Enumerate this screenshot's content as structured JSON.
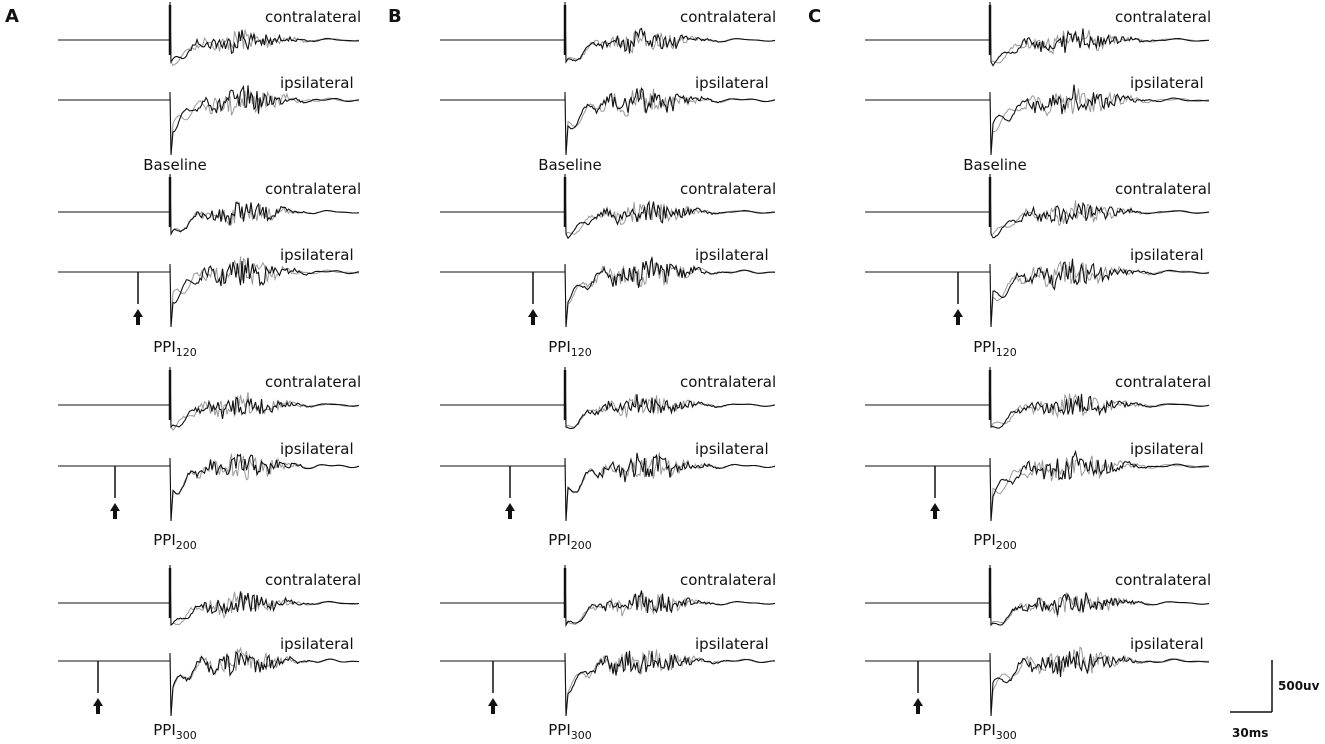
{
  "panels": [
    {
      "label": "A",
      "groups": [
        {
          "condition": {
            "base": "Baseline"
          },
          "traces": [
            "contralateral",
            "ipsilateral"
          ]
        },
        {
          "condition": {
            "base": "PPI",
            "sub": "120"
          },
          "traces": [
            "contralateral",
            "ipsilateral"
          ]
        },
        {
          "condition": {
            "base": "PPI",
            "sub": "200"
          },
          "traces": [
            "contralateral",
            "ipsilateral"
          ]
        },
        {
          "condition": {
            "base": "PPI",
            "sub": "300"
          },
          "traces": [
            "contralateral",
            "ipsilateral"
          ]
        }
      ]
    },
    {
      "label": "B",
      "groups": [
        {
          "condition": {
            "base": "Baseline"
          },
          "traces": [
            "contralateral",
            "ipsilateral"
          ]
        },
        {
          "condition": {
            "base": "PPI",
            "sub": "120"
          },
          "traces": [
            "contralateral",
            "ipsilateral"
          ]
        },
        {
          "condition": {
            "base": "PPI",
            "sub": "200"
          },
          "traces": [
            "contralateral",
            "ipsilateral"
          ]
        },
        {
          "condition": {
            "base": "PPI",
            "sub": "300"
          },
          "traces": [
            "contralateral",
            "ipsilateral"
          ]
        }
      ]
    },
    {
      "label": "C",
      "groups": [
        {
          "condition": {
            "base": "Baseline"
          },
          "traces": [
            "contralateral",
            "ipsilateral"
          ]
        },
        {
          "condition": {
            "base": "PPI",
            "sub": "120"
          },
          "traces": [
            "contralateral",
            "ipsilateral"
          ]
        },
        {
          "condition": {
            "base": "PPI",
            "sub": "200"
          },
          "traces": [
            "contralateral",
            "ipsilateral"
          ]
        },
        {
          "condition": {
            "base": "PPI",
            "sub": "300"
          },
          "traces": [
            "contralateral",
            "ipsilateral"
          ]
        }
      ]
    }
  ],
  "scale_bar": {
    "amplitude": "500uv",
    "time": "30ms"
  }
}
